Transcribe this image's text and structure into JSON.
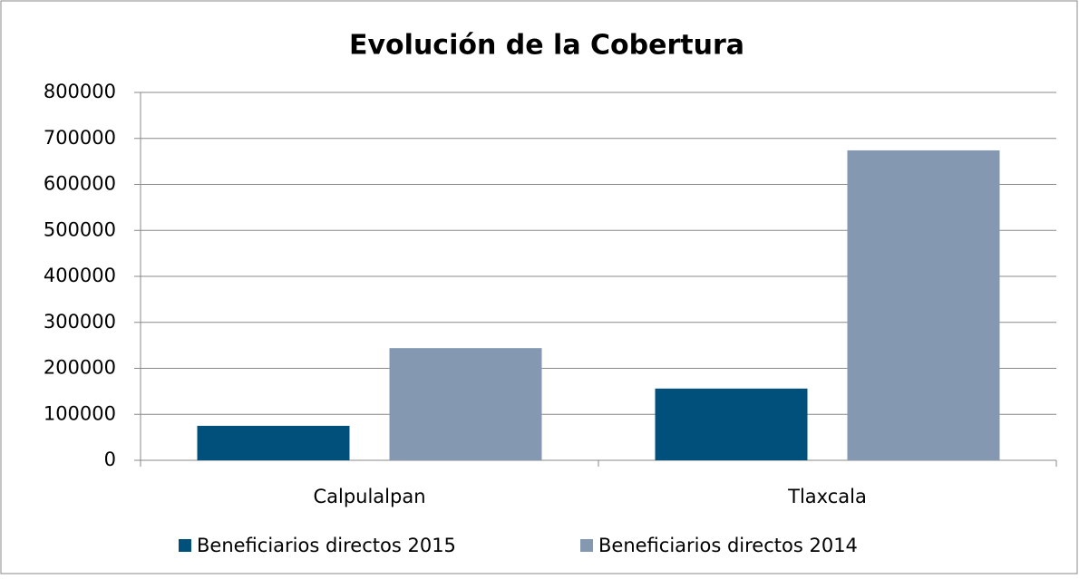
{
  "chart_data": {
    "type": "bar",
    "title": "Evolución de la Cobertura",
    "categories": [
      "Calpulalpan",
      "Tlaxcala"
    ],
    "series": [
      {
        "name": "Beneficiarios directos 2015",
        "color": "#00507c",
        "values": [
          75000,
          156000
        ]
      },
      {
        "name": "Beneficiarios directos 2014",
        "color": "#8499b1",
        "values": [
          244000,
          674000
        ]
      }
    ],
    "ylim": [
      0,
      800000
    ],
    "yticks": [
      0,
      100000,
      200000,
      300000,
      400000,
      500000,
      600000,
      700000,
      800000
    ],
    "grid": true,
    "legend": "bottom"
  }
}
